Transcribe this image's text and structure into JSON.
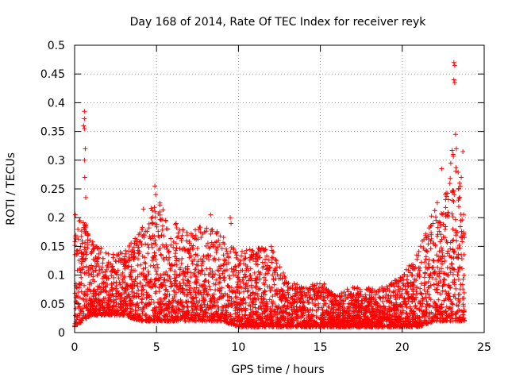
{
  "chart_data": {
    "type": "scatter",
    "title": "Day 168 of 2014, Rate Of TEC Index for receiver reyk",
    "xlabel": "GPS time / hours",
    "ylabel": "ROTI / TECUs",
    "xlim": [
      0,
      25
    ],
    "ylim": [
      0,
      0.5
    ],
    "xticks": [
      0,
      5,
      10,
      15,
      20,
      25
    ],
    "yticks": [
      0,
      0.05,
      0.1,
      0.15,
      0.2,
      0.25,
      0.3,
      0.35,
      0.4,
      0.45,
      0.5
    ],
    "xtick_labels": [
      "0",
      "5",
      "10",
      "15",
      "20",
      "25"
    ],
    "ytick_labels": [
      "0",
      "0.05",
      "0.1",
      "0.15",
      "0.2",
      "0.25",
      "0.3",
      "0.35",
      "0.4",
      "0.45",
      "0.5"
    ],
    "grid": true,
    "marker": "+",
    "series": [
      {
        "name": "ROTI",
        "color": "#ff0000",
        "envelope": {
          "x_hours": [
            0,
            0.5,
            1,
            2,
            3,
            4,
            4.5,
            5,
            6,
            7,
            8,
            9,
            10,
            11,
            12,
            13,
            14,
            15,
            16,
            17,
            18,
            19,
            20,
            21,
            22,
            22.5,
            23,
            23.2,
            23.5,
            23.8
          ],
          "upper_roti": [
            0.17,
            0.22,
            0.16,
            0.14,
            0.14,
            0.18,
            0.2,
            0.25,
            0.19,
            0.18,
            0.19,
            0.17,
            0.14,
            0.15,
            0.15,
            0.09,
            0.08,
            0.09,
            0.07,
            0.08,
            0.08,
            0.08,
            0.1,
            0.14,
            0.23,
            0.22,
            0.32,
            0.34,
            0.27,
            0.2
          ],
          "lower_roti": [
            0.01,
            0.02,
            0.03,
            0.03,
            0.03,
            0.02,
            0.02,
            0.02,
            0.02,
            0.02,
            0.02,
            0.02,
            0.01,
            0.01,
            0.01,
            0.01,
            0.01,
            0.01,
            0.01,
            0.01,
            0.01,
            0.01,
            0.01,
            0.01,
            0.02,
            0.02,
            0.02,
            0.02,
            0.02,
            0.02
          ]
        },
        "outliers": [
          [
            0.6,
            0.385
          ],
          [
            0.6,
            0.372
          ],
          [
            0.6,
            0.355
          ],
          [
            0.55,
            0.36
          ],
          [
            0.65,
            0.32
          ],
          [
            0.6,
            0.3
          ],
          [
            0.62,
            0.27
          ],
          [
            0.68,
            0.235
          ],
          [
            0.05,
            0.205
          ],
          [
            4.9,
            0.255
          ],
          [
            4.95,
            0.24
          ],
          [
            4.2,
            0.215
          ],
          [
            5.2,
            0.21
          ],
          [
            6.2,
            0.19
          ],
          [
            8.3,
            0.205
          ],
          [
            9.5,
            0.2
          ],
          [
            9.55,
            0.19
          ],
          [
            12.0,
            0.15
          ],
          [
            12.1,
            0.14
          ],
          [
            22.4,
            0.285
          ],
          [
            23.15,
            0.47
          ],
          [
            23.2,
            0.465
          ],
          [
            23.15,
            0.44
          ],
          [
            23.2,
            0.435
          ],
          [
            23.25,
            0.345
          ],
          [
            23.3,
            0.32
          ],
          [
            23.1,
            0.31
          ],
          [
            23.7,
            0.315
          ],
          [
            23.6,
            0.27
          ],
          [
            23.5,
            0.26
          ]
        ]
      }
    ]
  }
}
